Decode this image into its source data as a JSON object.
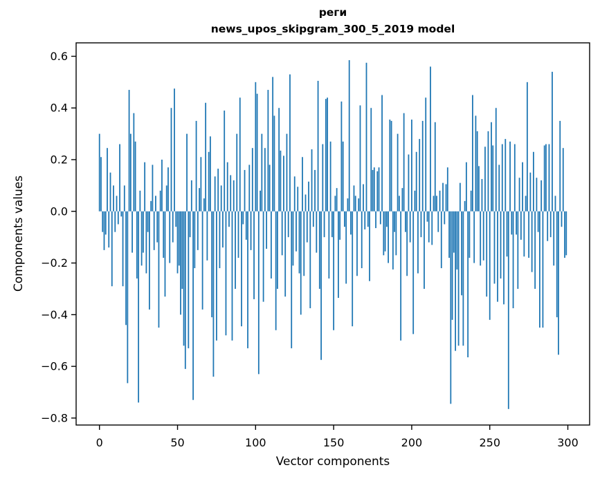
{
  "figure": {
    "title_line1": "реги",
    "title_line2": "news_upos_skipgram_300_5_2019 model",
    "xlabel": "Vector components",
    "ylabel": "Components values"
  },
  "chart_data": {
    "type": "bar",
    "title": "реги\nnews_upos_skipgram_300_5_2019 model",
    "xlabel": "Vector components",
    "ylabel": "Components values",
    "x_ticks": [
      0,
      50,
      100,
      150,
      200,
      250,
      300
    ],
    "y_ticks": [
      0.6,
      0.4,
      0.2,
      0.0,
      -0.2,
      -0.4,
      -0.6,
      -0.8
    ],
    "xlim": [
      -14.95,
      313.95
    ],
    "ylim": [
      -0.827,
      0.652
    ],
    "grid": false,
    "legend": null,
    "bar_color": "#1f77b4",
    "axis_color": "#000000",
    "n_components": 300,
    "values": [
      0.3,
      0.21,
      -0.08,
      -0.15,
      -0.09,
      0.245,
      -0.14,
      0.15,
      -0.29,
      0.1,
      -0.08,
      0.06,
      -0.05,
      0.26,
      -0.02,
      -0.29,
      0.1,
      -0.44,
      -0.665,
      0.47,
      0.3,
      -0.16,
      0.38,
      0.27,
      -0.26,
      -0.74,
      0.08,
      -0.21,
      -0.16,
      0.19,
      -0.24,
      -0.08,
      -0.38,
      0.04,
      0.18,
      -0.15,
      0.06,
      -0.12,
      -0.45,
      0.08,
      0.2,
      -0.18,
      -0.33,
      0.1,
      0.17,
      -0.2,
      0.4,
      -0.12,
      0.475,
      -0.06,
      -0.24,
      -0.21,
      -0.4,
      -0.3,
      -0.52,
      -0.61,
      0.3,
      -0.53,
      -0.1,
      0.12,
      -0.73,
      -0.22,
      0.35,
      -0.15,
      0.09,
      0.21,
      -0.38,
      0.05,
      0.42,
      -0.19,
      0.23,
      0.29,
      -0.41,
      -0.64,
      0.135,
      -0.5,
      0.165,
      -0.22,
      0.1,
      -0.14,
      0.39,
      -0.48,
      0.19,
      -0.06,
      0.14,
      -0.5,
      0.12,
      -0.3,
      0.3,
      -0.18,
      0.44,
      -0.445,
      -0.05,
      0.16,
      -0.11,
      -0.53,
      0.18,
      -0.15,
      0.245,
      -0.34,
      0.5,
      0.455,
      -0.63,
      0.08,
      0.3,
      -0.35,
      0.245,
      -0.145,
      0.47,
      0.18,
      -0.26,
      0.52,
      0.37,
      -0.46,
      -0.3,
      0.4,
      0.235,
      -0.17,
      0.215,
      -0.33,
      0.3,
      -0.1,
      0.53,
      -0.53,
      -0.21,
      0.135,
      -0.155,
      0.095,
      -0.24,
      -0.4,
      0.21,
      -0.25,
      0.065,
      -0.12,
      0.115,
      -0.375,
      0.24,
      -0.06,
      0.16,
      -0.16,
      0.505,
      -0.3,
      -0.575,
      0.26,
      -0.1,
      0.435,
      0.44,
      -0.26,
      0.27,
      -0.1,
      -0.46,
      0.06,
      0.09,
      -0.335,
      -0.11,
      0.425,
      0.27,
      -0.06,
      -0.28,
      0.05,
      0.585,
      -0.09,
      -0.445,
      0.1,
      0.06,
      -0.25,
      0.05,
      0.41,
      -0.22,
      0.105,
      -0.07,
      0.575,
      -0.06,
      -0.27,
      0.4,
      0.16,
      0.17,
      -0.065,
      0.155,
      0.17,
      -0.05,
      0.45,
      -0.17,
      -0.155,
      -0.06,
      -0.2,
      0.355,
      0.35,
      -0.225,
      -0.08,
      -0.17,
      0.3,
      0.06,
      -0.5,
      0.09,
      0.38,
      -0.08,
      -0.25,
      0.22,
      -0.12,
      0.355,
      -0.475,
      0.08,
      0.23,
      -0.24,
      0.28,
      -0.1,
      0.35,
      -0.3,
      0.44,
      -0.04,
      -0.12,
      0.56,
      -0.13,
      0.06,
      0.345,
      0.06,
      -0.08,
      0.08,
      -0.22,
      0.11,
      -0.05,
      0.105,
      0.17,
      -0.18,
      -0.745,
      -0.42,
      -0.16,
      -0.54,
      -0.225,
      -0.52,
      0.11,
      -0.325,
      -0.52,
      0.04,
      0.19,
      -0.565,
      -0.18,
      0.08,
      0.45,
      -0.2,
      0.37,
      0.31,
      0.175,
      -0.21,
      0.125,
      -0.19,
      0.25,
      -0.33,
      0.31,
      -0.42,
      0.345,
      0.255,
      -0.28,
      0.4,
      -0.35,
      0.18,
      -0.26,
      0.26,
      -0.36,
      0.28,
      -0.175,
      -0.765,
      0.27,
      -0.09,
      -0.375,
      0.26,
      -0.09,
      -0.3,
      0.13,
      -0.11,
      0.19,
      -0.175,
      0.06,
      0.5,
      -0.18,
      0.15,
      -0.235,
      0.23,
      -0.3,
      0.13,
      -0.08,
      -0.45,
      0.12,
      -0.45,
      0.255,
      0.26,
      -0.115,
      0.26,
      -0.1,
      0.54,
      -0.21,
      0.06,
      -0.41,
      -0.555,
      0.35,
      -0.06,
      0.245,
      -0.18,
      -0.17
    ]
  }
}
